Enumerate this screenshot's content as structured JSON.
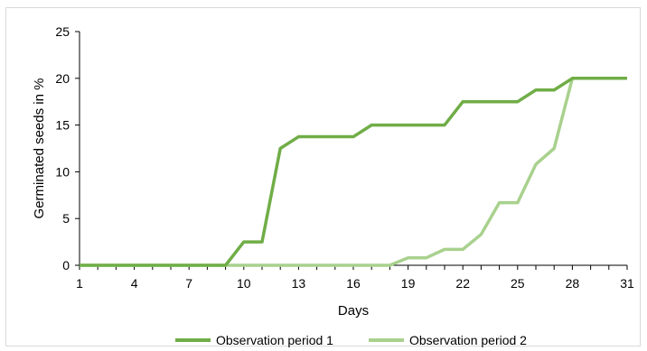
{
  "chart_data": {
    "type": "line",
    "title": "",
    "xlabel": "Days",
    "ylabel": "Germinated seeds in %",
    "xlim": [
      1,
      31
    ],
    "ylim": [
      0,
      25
    ],
    "x_ticks": [
      1,
      4,
      7,
      10,
      13,
      16,
      19,
      22,
      25,
      28,
      31
    ],
    "y_ticks": [
      0,
      5,
      10,
      15,
      20,
      25
    ],
    "grid": false,
    "legend_position": "bottom",
    "x": [
      1,
      2,
      3,
      4,
      5,
      6,
      7,
      8,
      9,
      10,
      11,
      12,
      13,
      14,
      15,
      16,
      17,
      18,
      19,
      20,
      21,
      22,
      23,
      24,
      25,
      26,
      27,
      28,
      29,
      30,
      31
    ],
    "series": [
      {
        "name": "Observation period 1",
        "color": "#70ad47",
        "values": [
          0,
          0,
          0,
          0,
          0,
          0,
          0,
          0,
          0,
          2.5,
          2.5,
          12.5,
          13.75,
          13.75,
          13.75,
          13.75,
          15,
          15,
          15,
          15,
          15,
          17.5,
          17.5,
          17.5,
          17.5,
          18.75,
          18.75,
          20,
          20,
          20,
          20
        ]
      },
      {
        "name": "Observation period 2",
        "color": "#a9d18e",
        "values": [
          0,
          0,
          0,
          0,
          0,
          0,
          0,
          0,
          0,
          0,
          0,
          0,
          0,
          0,
          0,
          0,
          0,
          0,
          0.8,
          0.8,
          1.7,
          1.7,
          3.3,
          6.7,
          6.7,
          10.8,
          12.5,
          20,
          null,
          null,
          null
        ]
      }
    ]
  }
}
